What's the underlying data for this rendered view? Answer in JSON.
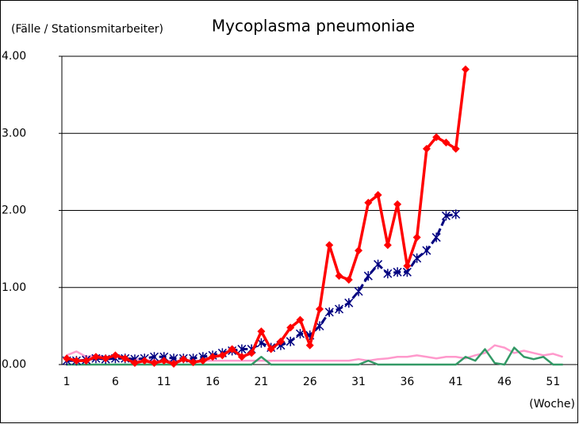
{
  "chart_data": {
    "type": "line",
    "title": "Mycoplasma pneumoniae",
    "y_label": "(Fälle / Stationsmitarbeiter)",
    "x_label": "(Woche)",
    "categories": [
      "1",
      null,
      null,
      null,
      null,
      "6",
      null,
      null,
      null,
      null,
      "11",
      null,
      null,
      null,
      null,
      "16",
      null,
      null,
      null,
      null,
      "21",
      null,
      null,
      null,
      null,
      "26",
      null,
      null,
      null,
      null,
      "31",
      null,
      null,
      null,
      null,
      "36",
      null,
      null,
      null,
      null,
      "41",
      null,
      null,
      null,
      null,
      "46",
      null,
      null,
      null,
      null,
      "51",
      null,
      null
    ],
    "ylim": [
      0,
      4
    ],
    "yticks": [
      {
        "value": 0,
        "label": "0.00"
      },
      {
        "value": 1,
        "label": "1.00"
      },
      {
        "value": 2,
        "label": "2.00"
      },
      {
        "value": 3,
        "label": "3.00"
      },
      {
        "value": 4,
        "label": "4.00"
      }
    ],
    "grid": true,
    "series": [
      {
        "color": "#ff99cc",
        "width": 2.5,
        "dashed": false,
        "marker": null,
        "values": [
          0.12,
          0.17,
          0.1,
          0.12,
          0.1,
          0.1,
          0.08,
          0.07,
          0.06,
          0.05,
          0.05,
          0.05,
          0.05,
          0.05,
          0.05,
          0.05,
          0.05,
          0.05,
          0.05,
          0.05,
          0.05,
          0.05,
          0.05,
          0.05,
          0.05,
          0.05,
          0.05,
          0.05,
          0.05,
          0.05,
          0.07,
          0.05,
          0.07,
          0.08,
          0.1,
          0.1,
          0.12,
          0.1,
          0.08,
          0.1,
          0.1,
          0.08,
          0.12,
          0.15,
          0.25,
          0.22,
          0.15,
          0.18,
          0.15,
          0.12,
          0.14,
          0.1,
          null
        ]
      },
      {
        "color": "#339966",
        "width": 2.5,
        "dashed": false,
        "marker": null,
        "values": [
          0,
          0,
          0,
          0,
          0,
          0,
          0,
          0,
          0,
          0,
          0,
          0,
          0,
          0,
          0,
          0,
          0,
          0,
          0,
          0,
          0.1,
          0,
          0,
          0,
          0,
          0,
          0,
          0,
          0,
          0,
          0,
          0.05,
          0,
          0,
          0,
          0,
          0,
          0,
          0,
          0,
          0,
          0.1,
          0.05,
          0.2,
          0.02,
          0,
          0.22,
          0.1,
          0.07,
          0.1,
          0,
          0,
          null
        ]
      },
      {
        "color": "#000080",
        "width": 3,
        "dashed": true,
        "marker": "x",
        "values": [
          0.05,
          0.05,
          0.06,
          0.08,
          0.07,
          0.08,
          0.08,
          0.07,
          0.08,
          0.1,
          0.1,
          0.08,
          0.08,
          0.08,
          0.1,
          0.12,
          0.15,
          0.18,
          0.2,
          0.2,
          0.28,
          0.22,
          0.25,
          0.3,
          0.4,
          0.38,
          0.5,
          0.68,
          0.72,
          0.8,
          0.95,
          1.15,
          1.3,
          1.18,
          1.2,
          1.2,
          1.38,
          1.48,
          1.65,
          1.93,
          1.95,
          null,
          null,
          null,
          null,
          null,
          null,
          null,
          null,
          null,
          null,
          null,
          null
        ]
      },
      {
        "color": "#ff0000",
        "width": 3.5,
        "dashed": false,
        "marker": "diamond",
        "values": [
          0.08,
          0.05,
          0.05,
          0.1,
          0.08,
          0.12,
          0.08,
          0.02,
          0.05,
          0.02,
          0.05,
          0.01,
          0.07,
          0.03,
          0.05,
          0.1,
          0.12,
          0.2,
          0.1,
          0.15,
          0.43,
          0.2,
          0.3,
          0.48,
          0.58,
          0.25,
          0.72,
          1.55,
          1.15,
          1.1,
          1.48,
          2.1,
          2.2,
          1.55,
          2.08,
          1.28,
          1.65,
          2.8,
          2.95,
          2.88,
          2.8,
          3.83,
          null,
          null,
          null,
          null,
          null,
          null,
          null,
          null,
          null,
          null,
          null
        ]
      }
    ]
  }
}
